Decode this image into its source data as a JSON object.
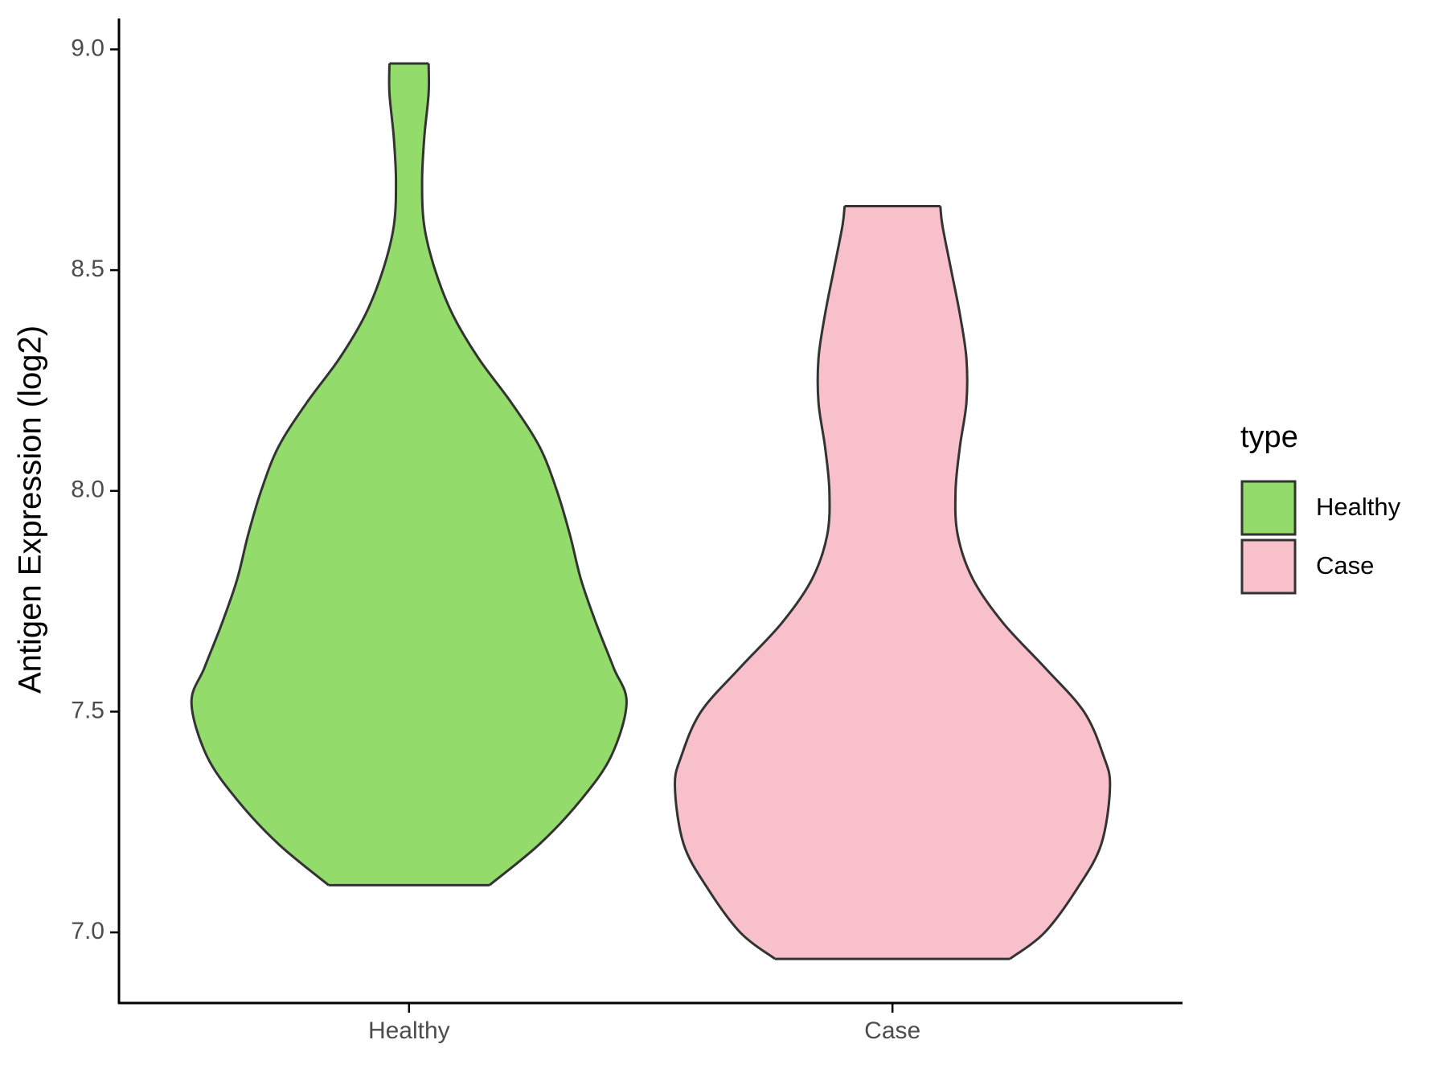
{
  "chart_data": {
    "type": "violin",
    "y_label": "Antigen Expression (log2)",
    "categories": [
      "Healthy",
      "Case"
    ],
    "legend_title": "type",
    "legend_position": "right",
    "ylim": [
      6.84,
      9.07
    ],
    "yticks": [
      {
        "value": 7,
        "label": "7.0"
      },
      {
        "value": 7.5,
        "label": "7.5"
      },
      {
        "value": 8,
        "label": "8.0"
      },
      {
        "value": 8.5,
        "label": "8.5"
      },
      {
        "value": 9,
        "label": "9.0"
      }
    ],
    "series": [
      {
        "name": "Healthy",
        "color": "#93db6b",
        "y": [
          7.107,
          7.2,
          7.3,
          7.4,
          7.52,
          7.6,
          7.7,
          7.8,
          7.9,
          8.0,
          8.1,
          8.2,
          8.3,
          8.4,
          8.5,
          8.6,
          8.7,
          8.8,
          8.9,
          8.968
        ],
        "density": [
          0.37,
          0.6,
          0.79,
          0.93,
          1.0,
          0.94,
          0.86,
          0.79,
          0.74,
          0.68,
          0.6,
          0.47,
          0.32,
          0.2,
          0.12,
          0.07,
          0.06,
          0.07,
          0.09,
          0.09
        ]
      },
      {
        "name": "Case",
        "color": "#f7c0cb",
        "y": [
          6.94,
          7.0,
          7.1,
          7.2,
          7.33,
          7.4,
          7.5,
          7.6,
          7.7,
          7.8,
          7.9,
          8.0,
          8.1,
          8.2,
          8.3,
          8.4,
          8.5,
          8.6,
          8.645
        ],
        "density": [
          0.54,
          0.7,
          0.85,
          0.96,
          1.0,
          0.97,
          0.88,
          0.7,
          0.51,
          0.37,
          0.3,
          0.29,
          0.31,
          0.34,
          0.34,
          0.31,
          0.27,
          0.23,
          0.22
        ]
      }
    ]
  }
}
